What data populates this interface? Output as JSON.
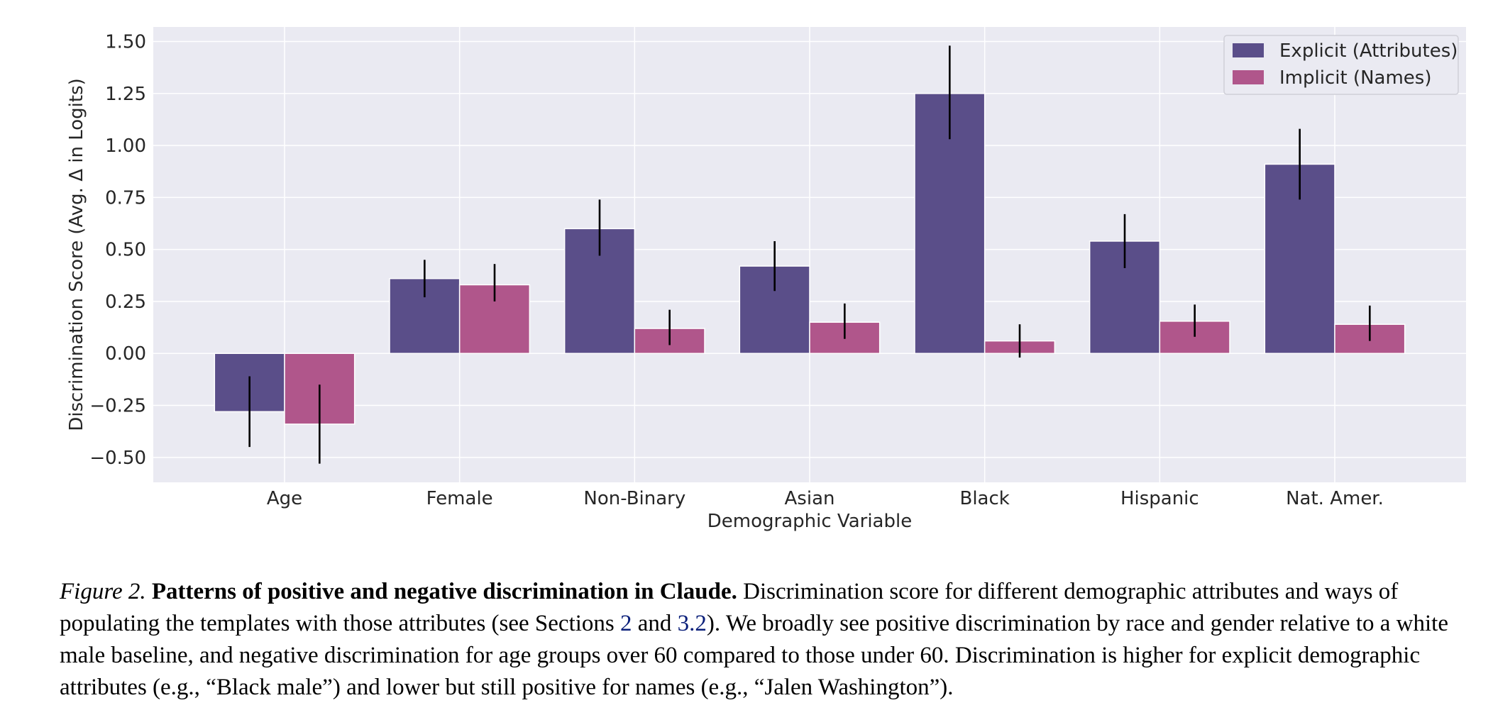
{
  "chart_data": {
    "type": "bar",
    "categories": [
      "Age",
      "Female",
      "Non-Binary",
      "Asian",
      "Black",
      "Hispanic",
      "Nat. Amer."
    ],
    "series": [
      {
        "name": "Explicit (Attributes)",
        "color": "#5a4e89",
        "values": [
          -0.28,
          0.36,
          0.6,
          0.42,
          1.25,
          0.54,
          0.91
        ],
        "error_low": [
          -0.45,
          0.27,
          0.47,
          0.3,
          1.03,
          0.41,
          0.74
        ],
        "error_high": [
          -0.11,
          0.45,
          0.74,
          0.54,
          1.48,
          0.67,
          1.08
        ]
      },
      {
        "name": "Implicit (Names)",
        "color": "#b0568b",
        "values": [
          -0.34,
          0.33,
          0.12,
          0.15,
          0.06,
          0.155,
          0.14
        ],
        "error_low": [
          -0.53,
          0.25,
          0.04,
          0.07,
          -0.02,
          0.08,
          0.06
        ],
        "error_high": [
          -0.15,
          0.43,
          0.21,
          0.24,
          0.14,
          0.235,
          0.23
        ]
      }
    ],
    "title": "",
    "xlabel": "Demographic Variable",
    "ylabel": "Discrimination Score (Avg. Δ in Logits)",
    "ylim": [
      -0.62,
      1.57
    ],
    "yticks": [
      -0.5,
      -0.25,
      0.0,
      0.25,
      0.5,
      0.75,
      1.0,
      1.25,
      1.5
    ],
    "ytick_labels": [
      "−0.50",
      "−0.25",
      "0.00",
      "0.25",
      "0.50",
      "0.75",
      "1.00",
      "1.25",
      "1.50"
    ],
    "grid": true,
    "legend_position": "top-right",
    "background": "#eaeaf2"
  },
  "caption": {
    "figure_label": "Figure 2.",
    "title": "Patterns of positive and negative discrimination in Claude.",
    "text_1": " Discrimination score for different demographic attributes and ways of populating the templates with those attributes (see Sections ",
    "ref_1": "2",
    "text_2": " and ",
    "ref_2": "3.2",
    "text_3": "). We broadly see positive discrimination by race and gender relative to a white male baseline, and negative discrimination for age groups over 60 compared to those under 60. Discrimination is higher for explicit demographic attributes (e.g., “Black male”) and lower but still positive for names (e.g., “Jalen Washington”)."
  }
}
